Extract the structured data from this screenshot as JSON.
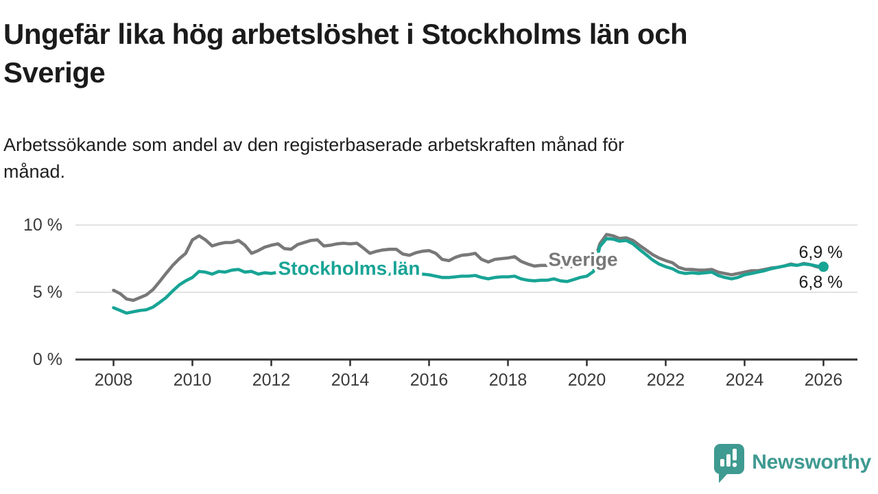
{
  "header": {
    "title_lines": [
      "Ungefär lika hög arbetslöshet i Stockholms län och",
      "Sverige"
    ],
    "subtitle_lines": [
      "Arbetssökande som andel av den registerbaserade arbetskraften månad för",
      "månad."
    ]
  },
  "logo": {
    "text": "Newsworthy",
    "color": "#3f9a91",
    "icon": "speech-bubble-bar-chart-icon"
  },
  "chart_data": {
    "type": "line",
    "title": "Ungefär lika hög arbetslöshet i Stockholms län och Sverige",
    "subtitle": "Arbetssökande som andel av den registerbaserade arbetskraften månad för månad.",
    "unit": "%",
    "xlabel": "",
    "ylabel": "",
    "ylim": [
      0,
      10.5
    ],
    "xlim": [
      2007.6,
      2026.6
    ],
    "grid": "horizontal-only",
    "legend_position": "inline-labels-on-lines",
    "colors": {
      "grid": "#d8d8d8",
      "axis": "#2f2f2f",
      "tick_text": "#3b3b3b",
      "end_label_text": "#1c1c1c"
    },
    "y_ticks": [
      {
        "value": 10,
        "label": "10 %"
      },
      {
        "value": 5,
        "label": "5 %"
      },
      {
        "value": 0,
        "label": "0 %"
      }
    ],
    "x_ticks": [
      2008,
      2010,
      2012,
      2014,
      2016,
      2018,
      2020,
      2022,
      2024,
      2026
    ],
    "series": [
      {
        "name": "Sverige",
        "color": "#787878",
        "end_label": "6,8 %",
        "end_label_position": "below",
        "end_value": 6.8,
        "marker_at_end": false,
        "points": [
          [
            2008.0,
            5.15
          ],
          [
            2008.17,
            4.9
          ],
          [
            2008.33,
            4.5
          ],
          [
            2008.5,
            4.4
          ],
          [
            2008.67,
            4.6
          ],
          [
            2008.83,
            4.8
          ],
          [
            2009.0,
            5.2
          ],
          [
            2009.17,
            5.8
          ],
          [
            2009.33,
            6.4
          ],
          [
            2009.5,
            7.0
          ],
          [
            2009.67,
            7.5
          ],
          [
            2009.83,
            7.9
          ],
          [
            2010.0,
            8.9
          ],
          [
            2010.17,
            9.2
          ],
          [
            2010.33,
            8.9
          ],
          [
            2010.5,
            8.45
          ],
          [
            2010.67,
            8.6
          ],
          [
            2010.83,
            8.7
          ],
          [
            2011.0,
            8.7
          ],
          [
            2011.17,
            8.85
          ],
          [
            2011.33,
            8.5
          ],
          [
            2011.5,
            7.9
          ],
          [
            2011.67,
            8.1
          ],
          [
            2011.83,
            8.35
          ],
          [
            2012.0,
            8.5
          ],
          [
            2012.17,
            8.6
          ],
          [
            2012.33,
            8.25
          ],
          [
            2012.5,
            8.2
          ],
          [
            2012.67,
            8.55
          ],
          [
            2012.83,
            8.7
          ],
          [
            2013.0,
            8.85
          ],
          [
            2013.17,
            8.9
          ],
          [
            2013.33,
            8.45
          ],
          [
            2013.5,
            8.5
          ],
          [
            2013.67,
            8.6
          ],
          [
            2013.83,
            8.65
          ],
          [
            2014.0,
            8.6
          ],
          [
            2014.17,
            8.65
          ],
          [
            2014.33,
            8.3
          ],
          [
            2014.5,
            7.9
          ],
          [
            2014.67,
            8.05
          ],
          [
            2014.83,
            8.15
          ],
          [
            2015.0,
            8.2
          ],
          [
            2015.17,
            8.2
          ],
          [
            2015.33,
            7.85
          ],
          [
            2015.5,
            7.75
          ],
          [
            2015.67,
            7.95
          ],
          [
            2015.83,
            8.05
          ],
          [
            2016.0,
            8.1
          ],
          [
            2016.17,
            7.9
          ],
          [
            2016.33,
            7.45
          ],
          [
            2016.5,
            7.35
          ],
          [
            2016.67,
            7.6
          ],
          [
            2016.83,
            7.75
          ],
          [
            2017.0,
            7.8
          ],
          [
            2017.17,
            7.9
          ],
          [
            2017.33,
            7.45
          ],
          [
            2017.5,
            7.25
          ],
          [
            2017.67,
            7.45
          ],
          [
            2017.83,
            7.5
          ],
          [
            2018.0,
            7.55
          ],
          [
            2018.17,
            7.65
          ],
          [
            2018.33,
            7.3
          ],
          [
            2018.5,
            7.1
          ],
          [
            2018.67,
            6.95
          ],
          [
            2018.83,
            7.0
          ],
          [
            2019.0,
            7.0
          ],
          [
            2019.17,
            7.05
          ],
          [
            2019.33,
            6.9
          ],
          [
            2019.5,
            6.85
          ],
          [
            2019.67,
            6.95
          ],
          [
            2019.83,
            6.9
          ],
          [
            2020.0,
            6.9
          ],
          [
            2020.17,
            7.1
          ],
          [
            2020.33,
            8.6
          ],
          [
            2020.5,
            9.3
          ],
          [
            2020.67,
            9.2
          ],
          [
            2020.83,
            9.0
          ],
          [
            2021.0,
            9.05
          ],
          [
            2021.17,
            8.85
          ],
          [
            2021.33,
            8.5
          ],
          [
            2021.5,
            8.15
          ],
          [
            2021.67,
            7.8
          ],
          [
            2021.83,
            7.55
          ],
          [
            2022.0,
            7.35
          ],
          [
            2022.17,
            7.2
          ],
          [
            2022.33,
            6.85
          ],
          [
            2022.5,
            6.7
          ],
          [
            2022.67,
            6.7
          ],
          [
            2022.83,
            6.65
          ],
          [
            2023.0,
            6.65
          ],
          [
            2023.17,
            6.7
          ],
          [
            2023.33,
            6.5
          ],
          [
            2023.5,
            6.4
          ],
          [
            2023.67,
            6.3
          ],
          [
            2023.83,
            6.4
          ],
          [
            2024.0,
            6.5
          ],
          [
            2024.17,
            6.6
          ],
          [
            2024.33,
            6.6
          ],
          [
            2024.5,
            6.7
          ],
          [
            2024.67,
            6.8
          ],
          [
            2024.83,
            6.85
          ],
          [
            2025.0,
            6.95
          ],
          [
            2025.17,
            7.1
          ],
          [
            2025.33,
            7.0
          ],
          [
            2025.5,
            7.15
          ],
          [
            2025.67,
            7.05
          ],
          [
            2025.83,
            6.9
          ],
          [
            2026.0,
            6.8
          ]
        ]
      },
      {
        "name": "Stockholms län",
        "color": "#18a495",
        "end_label": "6,9 %",
        "end_label_position": "above",
        "end_value": 6.9,
        "marker_at_end": true,
        "points": [
          [
            2008.0,
            3.85
          ],
          [
            2008.17,
            3.65
          ],
          [
            2008.33,
            3.45
          ],
          [
            2008.5,
            3.55
          ],
          [
            2008.67,
            3.65
          ],
          [
            2008.83,
            3.7
          ],
          [
            2009.0,
            3.9
          ],
          [
            2009.17,
            4.25
          ],
          [
            2009.33,
            4.6
          ],
          [
            2009.5,
            5.1
          ],
          [
            2009.67,
            5.55
          ],
          [
            2009.83,
            5.85
          ],
          [
            2010.0,
            6.1
          ],
          [
            2010.17,
            6.55
          ],
          [
            2010.33,
            6.5
          ],
          [
            2010.5,
            6.35
          ],
          [
            2010.67,
            6.55
          ],
          [
            2010.83,
            6.5
          ],
          [
            2011.0,
            6.65
          ],
          [
            2011.17,
            6.7
          ],
          [
            2011.33,
            6.5
          ],
          [
            2011.5,
            6.55
          ],
          [
            2011.67,
            6.35
          ],
          [
            2011.83,
            6.45
          ],
          [
            2012.0,
            6.4
          ],
          [
            2012.17,
            6.5
          ],
          [
            2012.33,
            6.35
          ],
          [
            2012.5,
            6.3
          ],
          [
            2012.67,
            6.4
          ],
          [
            2012.83,
            6.45
          ],
          [
            2013.0,
            6.5
          ],
          [
            2013.17,
            6.5
          ],
          [
            2013.33,
            6.35
          ],
          [
            2013.5,
            6.3
          ],
          [
            2013.67,
            6.4
          ],
          [
            2013.83,
            6.4
          ],
          [
            2014.0,
            6.4
          ],
          [
            2014.17,
            6.45
          ],
          [
            2014.33,
            6.3
          ],
          [
            2014.5,
            6.2
          ],
          [
            2014.67,
            6.3
          ],
          [
            2014.83,
            6.35
          ],
          [
            2015.0,
            6.35
          ],
          [
            2015.17,
            6.4
          ],
          [
            2015.33,
            6.25
          ],
          [
            2015.5,
            6.2
          ],
          [
            2015.67,
            6.3
          ],
          [
            2015.83,
            6.35
          ],
          [
            2016.0,
            6.3
          ],
          [
            2016.17,
            6.2
          ],
          [
            2016.33,
            6.1
          ],
          [
            2016.5,
            6.1
          ],
          [
            2016.67,
            6.15
          ],
          [
            2016.83,
            6.2
          ],
          [
            2017.0,
            6.2
          ],
          [
            2017.17,
            6.25
          ],
          [
            2017.33,
            6.1
          ],
          [
            2017.5,
            6.0
          ],
          [
            2017.67,
            6.1
          ],
          [
            2017.83,
            6.15
          ],
          [
            2018.0,
            6.15
          ],
          [
            2018.17,
            6.2
          ],
          [
            2018.33,
            6.0
          ],
          [
            2018.5,
            5.9
          ],
          [
            2018.67,
            5.85
          ],
          [
            2018.83,
            5.9
          ],
          [
            2019.0,
            5.9
          ],
          [
            2019.17,
            6.0
          ],
          [
            2019.33,
            5.85
          ],
          [
            2019.5,
            5.8
          ],
          [
            2019.67,
            5.95
          ],
          [
            2019.83,
            6.1
          ],
          [
            2020.0,
            6.2
          ],
          [
            2020.17,
            6.55
          ],
          [
            2020.33,
            8.4
          ],
          [
            2020.5,
            9.0
          ],
          [
            2020.67,
            8.95
          ],
          [
            2020.83,
            8.8
          ],
          [
            2021.0,
            8.85
          ],
          [
            2021.17,
            8.6
          ],
          [
            2021.33,
            8.2
          ],
          [
            2021.5,
            7.8
          ],
          [
            2021.67,
            7.4
          ],
          [
            2021.83,
            7.1
          ],
          [
            2022.0,
            6.9
          ],
          [
            2022.17,
            6.75
          ],
          [
            2022.33,
            6.5
          ],
          [
            2022.5,
            6.4
          ],
          [
            2022.67,
            6.45
          ],
          [
            2022.83,
            6.4
          ],
          [
            2023.0,
            6.45
          ],
          [
            2023.17,
            6.5
          ],
          [
            2023.33,
            6.25
          ],
          [
            2023.5,
            6.1
          ],
          [
            2023.67,
            6.0
          ],
          [
            2023.83,
            6.1
          ],
          [
            2024.0,
            6.3
          ],
          [
            2024.17,
            6.4
          ],
          [
            2024.33,
            6.5
          ],
          [
            2024.5,
            6.6
          ],
          [
            2024.67,
            6.75
          ],
          [
            2024.83,
            6.85
          ],
          [
            2025.0,
            6.95
          ],
          [
            2025.17,
            7.05
          ],
          [
            2025.33,
            7.0
          ],
          [
            2025.5,
            7.1
          ],
          [
            2025.67,
            7.05
          ],
          [
            2025.83,
            6.95
          ],
          [
            2026.0,
            6.9
          ]
        ]
      }
    ]
  }
}
